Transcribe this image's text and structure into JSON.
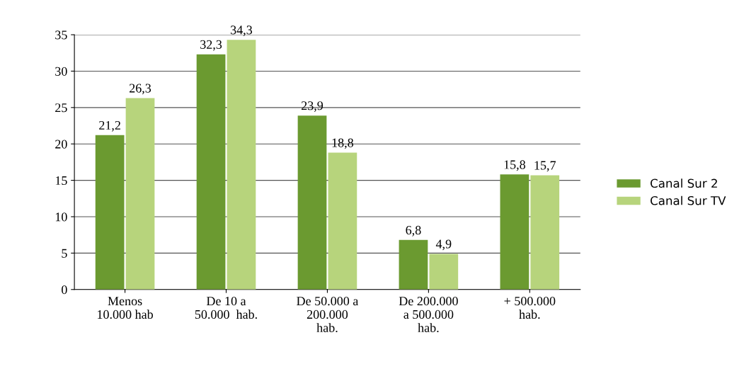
{
  "chart_data": {
    "type": "bar",
    "categories": [
      "Menos\n10.000 hab",
      "De 10 a\n50.000  hab.",
      "De 50.000 a\n200.000\nhab.",
      "De 200.000\na 500.000\nhab.",
      "+ 500.000\nhab."
    ],
    "series": [
      {
        "name": "Canal Sur 2",
        "color": "#6b9a30",
        "values": [
          21.2,
          32.3,
          23.9,
          6.8,
          15.8
        ],
        "value_labels": [
          "21,2",
          "32,3",
          "23,9",
          "6,8",
          "15,8"
        ]
      },
      {
        "name": "Canal Sur TV",
        "color": "#b7d47c",
        "values": [
          26.3,
          34.3,
          18.8,
          4.9,
          15.7
        ],
        "value_labels": [
          "26,3",
          "34,3",
          "18,8",
          "4,9",
          "15,7"
        ]
      }
    ],
    "ylim": [
      0,
      35
    ],
    "yticks": [
      0,
      5,
      10,
      15,
      20,
      25,
      30,
      35
    ],
    "grid": "y",
    "legend": "right"
  }
}
